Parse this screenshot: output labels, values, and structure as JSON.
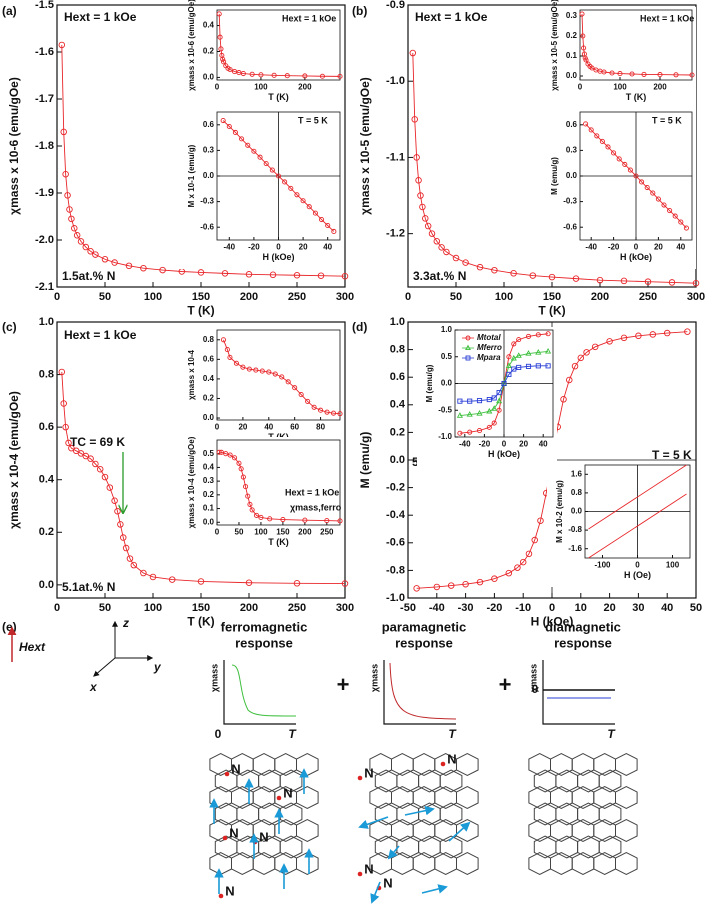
{
  "chart_data": [
    {
      "type": "line",
      "xlabel": "T (K)",
      "ylabel": "χmass x 10-6 (emu/gOe)",
      "annotations": [
        "(a)",
        "Hext = 1 kOe",
        "1.5at.% N"
      ],
      "xlim": [
        0,
        300
      ],
      "xticks": [
        0,
        50,
        100,
        150,
        200,
        250,
        300
      ],
      "ylim": [
        -2.1,
        -1.5
      ],
      "yticks": [
        -2.1,
        {
          "value": -2,
          "label": "-2.0"
        },
        -1.9,
        -1.8,
        -1.7,
        -1.6,
        -1.5
      ],
      "x": [
        5,
        7,
        9,
        11,
        13,
        15,
        18,
        21,
        25,
        30,
        35,
        40,
        50,
        60,
        75,
        90,
        110,
        130,
        150,
        175,
        200,
        225,
        250,
        275,
        300
      ],
      "series": [
        {
          "color": "#e8262a",
          "marker": "circle",
          "values": [
            -1.585,
            -1.77,
            -1.86,
            -1.905,
            -1.935,
            -1.955,
            -1.975,
            -1.99,
            -2.003,
            -2.015,
            -2.024,
            -2.031,
            -2.041,
            -2.048,
            -2.055,
            -2.06,
            -2.064,
            -2.067,
            -2.069,
            -2.071,
            -2.073,
            -2.074,
            -2.075,
            -2.076,
            -2.077
          ]
        }
      ]
    },
    {
      "type": "line",
      "xlabel": "T (K)",
      "ylabel": "χmass x 10-6 (emu/gOe)",
      "annotations": [
        "Hext = 1 kOe"
      ],
      "xlim": [
        0,
        280
      ],
      "xticks": [
        0,
        100,
        200
      ],
      "ylim": [
        -0.02,
        0.52
      ],
      "yticks": [
        {
          "value": 0,
          "label": "0.0"
        },
        0.2,
        0.4
      ],
      "x": [
        5,
        7,
        9,
        11,
        13,
        15,
        20,
        25,
        30,
        40,
        50,
        60,
        80,
        100,
        130,
        160,
        200,
        240,
        280
      ],
      "series": [
        {
          "color": "#e8262a",
          "marker": "circle",
          "values": [
            0.49,
            0.31,
            0.22,
            0.17,
            0.14,
            0.12,
            0.09,
            0.07,
            0.06,
            0.045,
            0.037,
            0.03,
            0.024,
            0.02,
            0.016,
            0.013,
            0.011,
            0.009,
            0.008
          ]
        }
      ]
    },
    {
      "type": "line",
      "xlabel": "H (kOe)",
      "ylabel": "M x 10-1 (emu/g)",
      "annotations": [
        "T = 5 K"
      ],
      "zero_lines": true,
      "xlim": [
        -50,
        50
      ],
      "xticks": [
        -40,
        -20,
        0,
        20,
        40
      ],
      "ylim": [
        -0.75,
        0.75
      ],
      "yticks": [
        0.6,
        0.3,
        {
          "value": 0,
          "label": "0.0"
        },
        -0.3,
        -0.6
      ],
      "x": [
        -45,
        -40,
        -35,
        -30,
        -25,
        -20,
        -15,
        -10,
        -5,
        0,
        5,
        10,
        15,
        20,
        25,
        30,
        35,
        40,
        45
      ],
      "series": [
        {
          "color": "#e8262a",
          "marker": "circle",
          "values": [
            0.65,
            0.58,
            0.51,
            0.435,
            0.36,
            0.29,
            0.22,
            0.145,
            0.07,
            0,
            -0.07,
            -0.145,
            -0.22,
            -0.29,
            -0.36,
            -0.435,
            -0.51,
            -0.58,
            -0.65
          ]
        }
      ]
    },
    {
      "type": "line",
      "xlabel": "T (K)",
      "ylabel": "χmass x 10-5 (emu/gOe)",
      "annotations": [
        "(b)",
        "Hext = 1 kOe",
        "3.3at.% N"
      ],
      "xlim": [
        0,
        300
      ],
      "xticks": [
        0,
        50,
        100,
        150,
        200,
        250,
        300
      ],
      "ylim": [
        -1.27,
        -0.9
      ],
      "yticks": [
        -1.2,
        -1.1,
        {
          "value": -1,
          "label": "-1.0"
        },
        -0.9
      ],
      "x": [
        5,
        7,
        9,
        11,
        13,
        15,
        18,
        21,
        25,
        30,
        35,
        40,
        50,
        60,
        75,
        90,
        110,
        130,
        150,
        175,
        200,
        225,
        250,
        275,
        300
      ],
      "series": [
        {
          "color": "#e8262a",
          "marker": "circle",
          "values": [
            -0.963,
            -1.05,
            -1.1,
            -1.13,
            -1.15,
            -1.165,
            -1.18,
            -1.19,
            -1.2,
            -1.21,
            -1.218,
            -1.224,
            -1.232,
            -1.238,
            -1.244,
            -1.248,
            -1.252,
            -1.255,
            -1.257,
            -1.259,
            -1.261,
            -1.262,
            -1.263,
            -1.264,
            -1.265
          ]
        }
      ]
    },
    {
      "type": "line",
      "xlabel": "T (K)",
      "ylabel": "χmass x 10-5 (emu/gOe)",
      "annotations": [
        "Hext = 1 kOe"
      ],
      "xlim": [
        0,
        280
      ],
      "xticks": [
        0,
        100,
        200
      ],
      "ylim": [
        -0.02,
        0.33
      ],
      "yticks": [
        {
          "value": 0,
          "label": "0.0"
        },
        0.1,
        0.2,
        0.3
      ],
      "x": [
        5,
        7,
        9,
        11,
        13,
        15,
        20,
        25,
        30,
        40,
        50,
        60,
        80,
        100,
        130,
        160,
        200,
        240,
        280
      ],
      "series": [
        {
          "color": "#e8262a",
          "marker": "circle",
          "values": [
            0.31,
            0.2,
            0.14,
            0.11,
            0.09,
            0.08,
            0.06,
            0.048,
            0.04,
            0.03,
            0.024,
            0.02,
            0.015,
            0.012,
            0.01,
            0.008,
            0.007,
            0.006,
            0.005
          ]
        }
      ]
    },
    {
      "type": "line",
      "xlabel": "H (kOe)",
      "ylabel": "M (emu/g)",
      "annotations": [
        "T = 5 K"
      ],
      "zero_lines": true,
      "xlim": [
        -50,
        50
      ],
      "xticks": [
        -40,
        -20,
        0,
        20,
        40
      ],
      "ylim": [
        -0.75,
        0.75
      ],
      "yticks": [
        0.6,
        0.3,
        {
          "value": 0,
          "label": "0.0"
        },
        -0.3,
        -0.6
      ],
      "x": [
        -45,
        -40,
        -35,
        -30,
        -25,
        -20,
        -15,
        -10,
        -5,
        0,
        5,
        10,
        15,
        20,
        25,
        30,
        35,
        40,
        45
      ],
      "series": [
        {
          "color": "#e8262a",
          "marker": "circle",
          "values": [
            0.61,
            0.54,
            0.47,
            0.405,
            0.34,
            0.27,
            0.2,
            0.135,
            0.07,
            0,
            -0.07,
            -0.135,
            -0.2,
            -0.27,
            -0.34,
            -0.405,
            -0.47,
            -0.54,
            -0.61
          ]
        }
      ]
    },
    {
      "type": "line",
      "xlabel": "T (K)",
      "ylabel": "χmass x 10-4 (emu/gOe)",
      "annotations": [
        "(c)",
        "Hext = 1 kOe",
        "TC = 69 K",
        "5.1at.% N"
      ],
      "xlim": [
        0,
        300
      ],
      "xticks": [
        0,
        50,
        100,
        150,
        200,
        250,
        300
      ],
      "ylim": [
        -0.05,
        1.0
      ],
      "yticks": [
        {
          "value": 0,
          "label": "0.0"
        },
        0.2,
        0.4,
        0.6,
        0.8,
        {
          "value": 1,
          "label": "1.0"
        }
      ],
      "x": [
        5,
        7,
        9,
        12,
        15,
        20,
        25,
        30,
        35,
        40,
        45,
        50,
        55,
        60,
        63,
        66,
        69,
        72,
        76,
        80,
        90,
        100,
        120,
        150,
        200,
        250,
        300
      ],
      "series": [
        {
          "color": "#e8262a",
          "marker": "circle",
          "values": [
            0.81,
            0.69,
            0.6,
            0.54,
            0.52,
            0.51,
            0.5,
            0.49,
            0.48,
            0.46,
            0.44,
            0.41,
            0.37,
            0.32,
            0.28,
            0.23,
            0.18,
            0.14,
            0.1,
            0.075,
            0.045,
            0.03,
            0.02,
            0.013,
            0.008,
            0.006,
            0.005
          ]
        }
      ]
    },
    {
      "type": "line",
      "xlabel": "T (K)",
      "ylabel": "χmass x 10-4",
      "annotations": [],
      "xlim": [
        0,
        95
      ],
      "xticks": [
        0,
        20,
        40,
        60,
        80
      ],
      "ylim": [
        -0.02,
        0.9
      ],
      "yticks": [
        {
          "value": 0,
          "label": "0.0"
        },
        0.2,
        0.4,
        0.6,
        0.8
      ],
      "x": [
        5,
        8,
        10,
        15,
        20,
        25,
        30,
        35,
        40,
        45,
        50,
        55,
        60,
        65,
        70,
        75,
        80,
        85,
        90,
        95
      ],
      "series": [
        {
          "color": "#e8262a",
          "marker": "circle",
          "values": [
            0.8,
            0.7,
            0.62,
            0.56,
            0.52,
            0.5,
            0.49,
            0.48,
            0.47,
            0.45,
            0.42,
            0.37,
            0.31,
            0.24,
            0.17,
            0.11,
            0.08,
            0.06,
            0.05,
            0.045
          ]
        }
      ]
    },
    {
      "type": "line",
      "xlabel": "T (K)",
      "ylabel": "χmass x 10-4 (emu/gOe)",
      "annotations": [
        "Hext = 1 kOe",
        "χmass,ferro"
      ],
      "xlim": [
        0,
        280
      ],
      "xticks": [
        0,
        50,
        100,
        150,
        200,
        250
      ],
      "ylim": [
        -0.02,
        0.6
      ],
      "yticks": [
        {
          "value": 0,
          "label": "0.0"
        },
        0.1,
        0.2,
        0.3,
        0.4,
        0.5
      ],
      "x": [
        5,
        10,
        20,
        30,
        40,
        50,
        55,
        60,
        65,
        70,
        75,
        80,
        90,
        100,
        120,
        150,
        200,
        250,
        280
      ],
      "series": [
        {
          "color": "#e8262a",
          "marker": "circle",
          "values": [
            0.51,
            0.51,
            0.5,
            0.49,
            0.47,
            0.43,
            0.39,
            0.33,
            0.26,
            0.19,
            0.13,
            0.09,
            0.05,
            0.035,
            0.025,
            0.02,
            0.015,
            0.012,
            0.01
          ]
        }
      ]
    },
    {
      "type": "line",
      "xlabel": "H (kOe)",
      "ylabel": "M (emu/g)",
      "annotations": [
        "(d)",
        "T = 5 K",
        "5.1at.% N"
      ],
      "zero_lines": true,
      "xlim": [
        -50,
        50
      ],
      "xticks": [
        -50,
        -40,
        -30,
        -20,
        -10,
        0,
        10,
        20,
        30,
        40,
        50
      ],
      "ylim": [
        -1,
        1
      ],
      "yticks": [
        {
          "value": -1,
          "label": "-1.0"
        },
        -0.8,
        -0.6,
        -0.4,
        -0.2,
        {
          "value": 0,
          "label": "0.0"
        },
        0.2,
        0.4,
        0.6,
        0.8,
        {
          "value": 1,
          "label": "1.0"
        }
      ],
      "x": [
        -47,
        -40,
        -35,
        -30,
        -25,
        -20,
        -15,
        -12,
        -10,
        -8,
        -6,
        -4,
        -2,
        0,
        2,
        4,
        6,
        8,
        10,
        12,
        15,
        20,
        25,
        30,
        35,
        40,
        47
      ],
      "series": [
        {
          "color": "#e8262a",
          "marker": "circle",
          "values": [
            -0.93,
            -0.92,
            -0.91,
            -0.9,
            -0.885,
            -0.86,
            -0.82,
            -0.78,
            -0.74,
            -0.68,
            -0.58,
            -0.44,
            -0.24,
            0,
            0.24,
            0.44,
            0.58,
            0.68,
            0.74,
            0.78,
            0.82,
            0.86,
            0.885,
            0.9,
            0.91,
            0.92,
            0.93
          ]
        }
      ]
    },
    {
      "type": "line",
      "xlabel": "H (kOe)",
      "ylabel": "M (emu/g)",
      "annotations": [],
      "zero_lines": true,
      "xlim": [
        -50,
        50
      ],
      "xticks": [
        -40,
        -20,
        0,
        20,
        40
      ],
      "ylim": [
        -1,
        1
      ],
      "yticks": [
        {
          "value": -1,
          "label": "-1.0"
        },
        -0.5,
        {
          "value": 0,
          "label": "0.0"
        },
        0.5,
        {
          "value": 1,
          "label": "1.0"
        }
      ],
      "x": [
        -45,
        -35,
        -25,
        -15,
        -10,
        -5,
        0,
        5,
        10,
        15,
        25,
        35,
        45
      ],
      "series": [
        {
          "name": "Mtotal",
          "color": "#e8262a",
          "marker": "circle",
          "values": [
            -0.93,
            -0.91,
            -0.88,
            -0.82,
            -0.74,
            -0.5,
            0,
            0.5,
            0.74,
            0.82,
            0.88,
            0.91,
            0.93
          ]
        },
        {
          "name": "Mferro",
          "color": "#3dbf3d",
          "marker": "triangle",
          "values": [
            -0.6,
            -0.58,
            -0.56,
            -0.52,
            -0.47,
            -0.33,
            0,
            0.33,
            0.47,
            0.52,
            0.56,
            0.58,
            0.6
          ]
        },
        {
          "name": "Mpara",
          "color": "#2a3fd6",
          "marker": "square",
          "values": [
            -0.33,
            -0.33,
            -0.32,
            -0.3,
            -0.27,
            -0.17,
            0,
            0.17,
            0.27,
            0.3,
            0.32,
            0.33,
            0.33
          ]
        }
      ]
    },
    {
      "type": "line",
      "xlabel": "H (Oe)",
      "ylabel": "M x 10-2 (emu/g)",
      "annotations": [],
      "zero_lines": true,
      "xlim": [
        -150,
        150
      ],
      "xticks": [
        -100,
        0,
        100
      ],
      "ylim": [
        -2,
        2
      ],
      "yticks": [
        -1.6,
        -0.8,
        {
          "value": 0,
          "label": "0.0"
        },
        0.8,
        1.6
      ],
      "x": [
        -140,
        140
      ],
      "series": [
        {
          "color": "#e8262a",
          "marker": "none",
          "values": [
            -0.75,
            2.0
          ]
        },
        {
          "color": "#e8262a",
          "marker": "none",
          "values": [
            -2.0,
            0.75
          ]
        }
      ]
    }
  ],
  "schematic": {
    "label": "(e)",
    "field": "Hext",
    "axes": [
      "z",
      "y",
      "x"
    ],
    "plus": [
      "+",
      "+"
    ],
    "panels": [
      {
        "title": [
          "ferromagnetic",
          "response"
        ],
        "ylabel": "χmass",
        "origin": "0",
        "xlabel": "T",
        "n_labels": [
          "N",
          "N",
          "N",
          "N",
          "N"
        ]
      },
      {
        "title": [
          "paramagnetic",
          "response"
        ],
        "ylabel": "χmass",
        "xlabel": "T",
        "n_labels": [
          "N",
          "N",
          "N",
          "N"
        ]
      },
      {
        "title": [
          "diamagnetic",
          "response"
        ],
        "ylabel": "χmass",
        "origin": "0",
        "xlabel": "T"
      }
    ]
  }
}
